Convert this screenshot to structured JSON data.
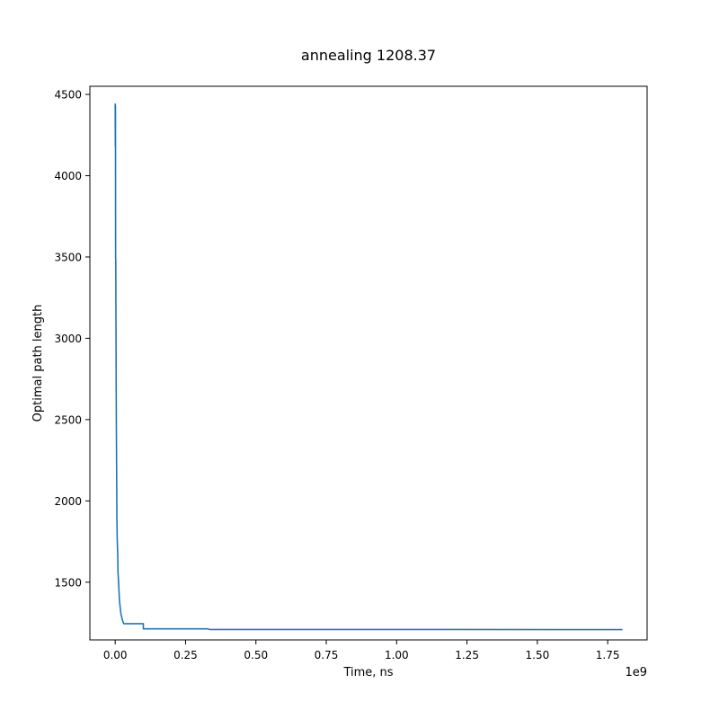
{
  "chart_data": {
    "type": "line",
    "title": "annealing 1208.37",
    "xlabel": "Time, ns",
    "ylabel": "Optimal path length",
    "x_offset_text": "1e9",
    "xlim": [
      -0.09,
      1.89
    ],
    "ylim": [
      1145,
      4550
    ],
    "x_ticks": [
      0.0,
      0.25,
      0.5,
      0.75,
      1.0,
      1.25,
      1.5,
      1.75
    ],
    "x_tick_labels": [
      "0.00",
      "0.25",
      "0.50",
      "0.75",
      "1.00",
      "1.25",
      "1.50",
      "1.75"
    ],
    "y_ticks": [
      1500,
      2000,
      2500,
      3000,
      3500,
      4000,
      4500
    ],
    "y_tick_labels": [
      "1500",
      "2000",
      "2500",
      "3000",
      "3500",
      "4000",
      "4500"
    ],
    "grid": false,
    "legend": "none",
    "series": [
      {
        "color": "#1f77b4",
        "x": [
          0.0,
          0.0005,
          0.001,
          0.0015,
          0.002,
          0.0025,
          0.003,
          0.0035,
          0.004,
          0.005,
          0.006,
          0.007,
          0.008,
          0.009,
          0.01,
          0.012,
          0.015,
          0.018,
          0.02,
          0.025,
          0.03,
          0.1,
          0.1,
          0.2,
          0.33,
          0.335,
          1.0,
          1.8
        ],
        "y": [
          4440,
          4180,
          4430,
          3500,
          3480,
          3220,
          3000,
          2700,
          2500,
          2200,
          1900,
          1780,
          1720,
          1660,
          1560,
          1500,
          1390,
          1340,
          1310,
          1270,
          1245,
          1245,
          1213,
          1213,
          1213,
          1209,
          1209,
          1208.37
        ]
      }
    ]
  }
}
